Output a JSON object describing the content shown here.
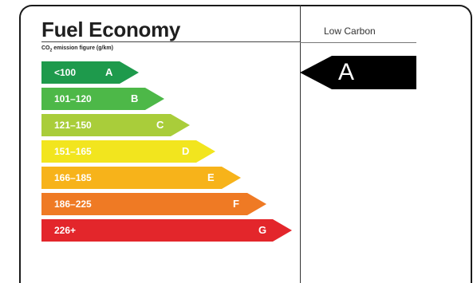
{
  "label": {
    "title": "Fuel Economy",
    "subtitle_prefix": "CO",
    "subtitle_sub": "2",
    "subtitle_rest": " emission figure (g/km)",
    "right_header": "Low Carbon"
  },
  "bands": [
    {
      "range": "<100",
      "letter": "A",
      "color": "#1e9a4c"
    },
    {
      "range": "101–120",
      "letter": "B",
      "color": "#4db848"
    },
    {
      "range": "121–150",
      "letter": "C",
      "color": "#a9cd3a"
    },
    {
      "range": "151–165",
      "letter": "D",
      "color": "#f2e51e"
    },
    {
      "range": "166–185",
      "letter": "E",
      "color": "#f7b31a"
    },
    {
      "range": "186–225",
      "letter": "F",
      "color": "#ef7a24"
    },
    {
      "range": "226+",
      "letter": "G",
      "color": "#e3262b"
    }
  ],
  "rating": {
    "letter": "A",
    "color": "#000000"
  }
}
